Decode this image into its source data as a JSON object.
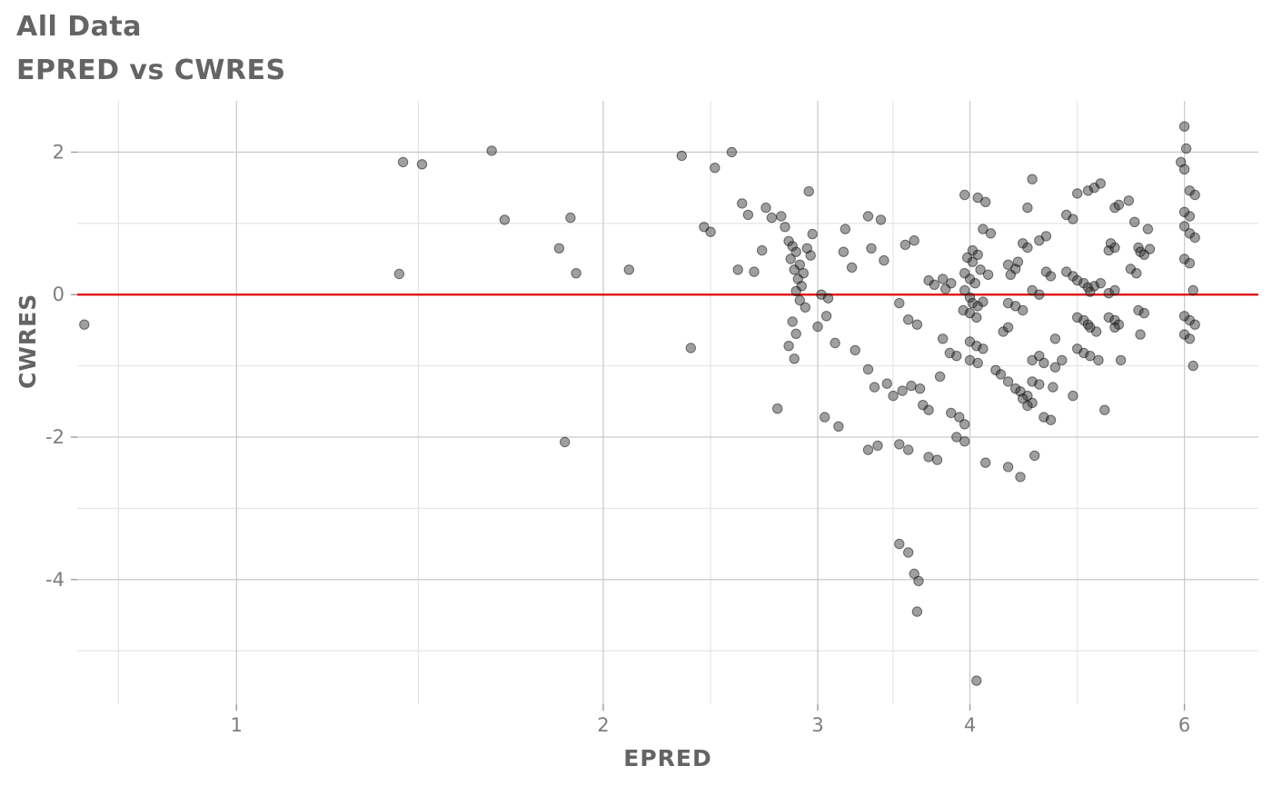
{
  "chart_data": {
    "type": "scatter",
    "title": "All Data",
    "subtitle": "EPRED vs CWRES",
    "xlabel": "EPRED",
    "ylabel": "CWRES",
    "x_scale": "log10",
    "xlim": [
      0.74,
      6.9
    ],
    "ylim": [
      -5.75,
      2.72
    ],
    "x_ticks": [
      1,
      2,
      3,
      4,
      6
    ],
    "y_ticks": [
      2,
      0,
      -2,
      -4
    ],
    "x_minor": [
      0.8,
      1.41,
      2.45,
      3.46,
      4.9
    ],
    "y_minor": [
      1,
      -1,
      -3,
      -5
    ],
    "grid": true,
    "legend": "none",
    "reference_line": {
      "y": 0,
      "color": "#e10000"
    },
    "colors": {
      "point": "#2b2b2b",
      "grid_major": "#cccccc",
      "grid_minor": "#e3e3e3",
      "tick": "#9b9b9b",
      "tick_label": "#7d7d7d",
      "title": "#646464"
    },
    "point_opacity": 0.45,
    "points": [
      [
        0.75,
        -0.42
      ],
      [
        1.37,
        1.86
      ],
      [
        1.42,
        1.83
      ],
      [
        1.36,
        0.29
      ],
      [
        1.62,
        2.02
      ],
      [
        1.66,
        1.05
      ],
      [
        1.84,
        0.65
      ],
      [
        1.88,
        1.08
      ],
      [
        1.9,
        0.3
      ],
      [
        1.86,
        -2.07
      ],
      [
        2.1,
        0.35
      ],
      [
        2.32,
        1.95
      ],
      [
        2.36,
        -0.75
      ],
      [
        2.42,
        0.95
      ],
      [
        2.45,
        0.88
      ],
      [
        2.47,
        1.78
      ],
      [
        2.55,
        2.0
      ],
      [
        2.6,
        1.28
      ],
      [
        2.63,
        1.12
      ],
      [
        2.58,
        0.35
      ],
      [
        2.66,
        0.32
      ],
      [
        2.72,
        1.22
      ],
      [
        2.75,
        1.08
      ],
      [
        2.7,
        0.62
      ],
      [
        2.8,
        1.1
      ],
      [
        2.82,
        0.95
      ],
      [
        2.84,
        0.75
      ],
      [
        2.86,
        0.68
      ],
      [
        2.88,
        0.6
      ],
      [
        2.85,
        0.5
      ],
      [
        2.9,
        0.42
      ],
      [
        2.87,
        0.35
      ],
      [
        2.92,
        0.3
      ],
      [
        2.89,
        0.22
      ],
      [
        2.91,
        0.12
      ],
      [
        2.88,
        0.05
      ],
      [
        2.9,
        -0.08
      ],
      [
        2.93,
        -0.18
      ],
      [
        2.86,
        -0.38
      ],
      [
        2.88,
        -0.55
      ],
      [
        2.84,
        -0.72
      ],
      [
        2.87,
        -0.9
      ],
      [
        2.95,
        1.45
      ],
      [
        2.97,
        0.85
      ],
      [
        2.78,
        -1.6
      ],
      [
        2.96,
        0.55
      ],
      [
        2.94,
        0.65
      ],
      [
        3.02,
        0.0
      ],
      [
        3.06,
        -0.05
      ],
      [
        3.0,
        -0.45
      ],
      [
        3.05,
        -0.3
      ],
      [
        3.1,
        -0.68
      ],
      [
        3.04,
        -1.72
      ],
      [
        3.12,
        -1.85
      ],
      [
        3.16,
        0.92
      ],
      [
        3.2,
        0.38
      ],
      [
        3.22,
        -0.78
      ],
      [
        3.15,
        0.6
      ],
      [
        3.3,
        1.1
      ],
      [
        3.38,
        1.05
      ],
      [
        3.32,
        0.65
      ],
      [
        3.4,
        0.48
      ],
      [
        3.3,
        -1.05
      ],
      [
        3.34,
        -1.3
      ],
      [
        3.42,
        -1.25
      ],
      [
        3.36,
        -2.12
      ],
      [
        3.3,
        -2.18
      ],
      [
        3.46,
        -1.42
      ],
      [
        3.52,
        -1.35
      ],
      [
        3.5,
        -2.1
      ],
      [
        3.56,
        -2.18
      ],
      [
        3.5,
        -0.12
      ],
      [
        3.56,
        -0.35
      ],
      [
        3.62,
        -0.42
      ],
      [
        3.54,
        0.7
      ],
      [
        3.6,
        0.76
      ],
      [
        3.5,
        -3.5
      ],
      [
        3.56,
        -3.62
      ],
      [
        3.6,
        -3.92
      ],
      [
        3.63,
        -4.02
      ],
      [
        3.62,
        -4.45
      ],
      [
        3.64,
        -1.32
      ],
      [
        3.58,
        -1.28
      ],
      [
        3.66,
        -1.55
      ],
      [
        3.7,
        -1.62
      ],
      [
        3.7,
        -2.28
      ],
      [
        3.76,
        -2.32
      ],
      [
        3.7,
        0.2
      ],
      [
        3.74,
        0.14
      ],
      [
        3.8,
        0.22
      ],
      [
        3.82,
        0.08
      ],
      [
        3.86,
        0.16
      ],
      [
        3.8,
        -0.62
      ],
      [
        3.85,
        -0.82
      ],
      [
        3.9,
        -0.86
      ],
      [
        3.86,
        -1.66
      ],
      [
        3.92,
        -1.72
      ],
      [
        3.96,
        -1.82
      ],
      [
        3.9,
        -2.0
      ],
      [
        3.96,
        -2.06
      ],
      [
        3.78,
        -1.15
      ],
      [
        3.98,
        0.52
      ],
      [
        4.02,
        0.46
      ],
      [
        4.06,
        0.56
      ],
      [
        3.96,
        0.3
      ],
      [
        4.0,
        0.22
      ],
      [
        4.04,
        0.16
      ],
      [
        3.96,
        0.06
      ],
      [
        4.0,
        -0.04
      ],
      [
        4.02,
        -0.12
      ],
      [
        4.06,
        -0.16
      ],
      [
        4.1,
        -0.1
      ],
      [
        3.95,
        -0.22
      ],
      [
        4.0,
        -0.26
      ],
      [
        4.05,
        -0.32
      ],
      [
        4.0,
        -0.66
      ],
      [
        4.05,
        -0.72
      ],
      [
        4.1,
        -0.76
      ],
      [
        4.0,
        -0.92
      ],
      [
        4.06,
        -0.96
      ],
      [
        3.96,
        1.4
      ],
      [
        4.06,
        1.36
      ],
      [
        4.12,
        1.3
      ],
      [
        4.1,
        0.92
      ],
      [
        4.16,
        0.86
      ],
      [
        4.05,
        -5.42
      ],
      [
        4.12,
        -2.36
      ],
      [
        4.2,
        -1.06
      ],
      [
        4.24,
        -1.12
      ],
      [
        4.26,
        -0.52
      ],
      [
        4.3,
        -0.46
      ],
      [
        4.08,
        0.35
      ],
      [
        4.14,
        0.28
      ],
      [
        4.02,
        0.62
      ],
      [
        4.3,
        0.42
      ],
      [
        4.36,
        0.36
      ],
      [
        4.32,
        0.28
      ],
      [
        4.38,
        0.46
      ],
      [
        4.42,
        0.72
      ],
      [
        4.46,
        0.66
      ],
      [
        4.3,
        -1.22
      ],
      [
        4.36,
        -1.32
      ],
      [
        4.4,
        -1.36
      ],
      [
        4.46,
        -1.42
      ],
      [
        4.42,
        -1.46
      ],
      [
        4.5,
        -1.52
      ],
      [
        4.46,
        -1.56
      ],
      [
        4.5,
        -1.22
      ],
      [
        4.56,
        -1.26
      ],
      [
        4.5,
        -0.92
      ],
      [
        4.56,
        -0.86
      ],
      [
        4.6,
        -0.96
      ],
      [
        4.3,
        -2.42
      ],
      [
        4.4,
        -2.56
      ],
      [
        4.52,
        -2.26
      ],
      [
        4.6,
        -1.72
      ],
      [
        4.66,
        -1.76
      ],
      [
        4.5,
        1.62
      ],
      [
        4.46,
        1.22
      ],
      [
        4.56,
        0.76
      ],
      [
        4.62,
        0.82
      ],
      [
        4.3,
        -0.12
      ],
      [
        4.36,
        -0.16
      ],
      [
        4.42,
        -0.22
      ],
      [
        4.5,
        0.06
      ],
      [
        4.56,
        0.0
      ],
      [
        4.62,
        0.32
      ],
      [
        4.66,
        0.26
      ],
      [
        4.7,
        -0.62
      ],
      [
        4.7,
        -1.02
      ],
      [
        4.76,
        -0.92
      ],
      [
        4.68,
        -1.3
      ],
      [
        4.8,
        1.12
      ],
      [
        4.86,
        1.06
      ],
      [
        4.9,
        1.42
      ],
      [
        5.0,
        1.46
      ],
      [
        5.06,
        1.5
      ],
      [
        5.12,
        1.56
      ],
      [
        4.8,
        0.32
      ],
      [
        4.86,
        0.26
      ],
      [
        4.9,
        0.2
      ],
      [
        4.96,
        0.16
      ],
      [
        5.0,
        0.1
      ],
      [
        5.02,
        0.04
      ],
      [
        5.06,
        0.12
      ],
      [
        5.12,
        0.16
      ],
      [
        4.9,
        -0.32
      ],
      [
        4.96,
        -0.36
      ],
      [
        5.0,
        -0.42
      ],
      [
        5.02,
        -0.46
      ],
      [
        5.08,
        -0.52
      ],
      [
        4.9,
        -0.76
      ],
      [
        4.96,
        -0.82
      ],
      [
        5.02,
        -0.86
      ],
      [
        5.1,
        -0.92
      ],
      [
        4.86,
        -1.42
      ],
      [
        5.16,
        -1.62
      ],
      [
        5.2,
        0.62
      ],
      [
        5.26,
        0.66
      ],
      [
        5.22,
        0.72
      ],
      [
        5.26,
        1.22
      ],
      [
        5.3,
        1.26
      ],
      [
        5.2,
        -0.32
      ],
      [
        5.26,
        -0.36
      ],
      [
        5.3,
        -0.42
      ],
      [
        5.26,
        -0.46
      ],
      [
        5.32,
        -0.92
      ],
      [
        5.2,
        0.02
      ],
      [
        5.26,
        0.06
      ],
      [
        5.4,
        1.32
      ],
      [
        5.46,
        1.02
      ],
      [
        5.5,
        0.66
      ],
      [
        5.52,
        0.6
      ],
      [
        5.56,
        0.56
      ],
      [
        5.42,
        0.36
      ],
      [
        5.48,
        0.3
      ],
      [
        5.5,
        -0.22
      ],
      [
        5.56,
        -0.26
      ],
      [
        5.52,
        -0.56
      ],
      [
        5.6,
        0.92
      ],
      [
        5.62,
        0.64
      ],
      [
        6.0,
        2.36
      ],
      [
        6.02,
        2.05
      ],
      [
        5.96,
        1.86
      ],
      [
        6.0,
        1.76
      ],
      [
        6.06,
        1.46
      ],
      [
        6.12,
        1.4
      ],
      [
        6.0,
        1.16
      ],
      [
        6.06,
        1.1
      ],
      [
        6.0,
        0.96
      ],
      [
        6.06,
        0.86
      ],
      [
        6.12,
        0.8
      ],
      [
        6.0,
        0.5
      ],
      [
        6.06,
        0.44
      ],
      [
        6.0,
        -0.3
      ],
      [
        6.06,
        -0.36
      ],
      [
        6.12,
        -0.42
      ],
      [
        6.0,
        -0.56
      ],
      [
        6.06,
        -0.62
      ],
      [
        6.1,
        -1.0
      ],
      [
        6.1,
        0.06
      ]
    ]
  }
}
